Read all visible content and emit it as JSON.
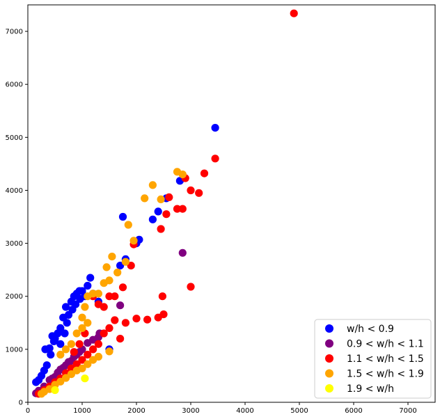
{
  "chart_data": {
    "type": "scatter",
    "title": "",
    "xlabel": "",
    "ylabel": "",
    "xlim": [
      0,
      7500
    ],
    "ylim": [
      0,
      7500
    ],
    "xticks": [
      0,
      1000,
      2000,
      3000,
      4000,
      5000,
      6000,
      7000
    ],
    "yticks": [
      0,
      1000,
      2000,
      3000,
      4000,
      5000,
      6000,
      7000
    ],
    "grid": false,
    "legend_position": "lower-right",
    "series": [
      {
        "name": "w/h < 0.9",
        "color": "#0000ff",
        "points": [
          [
            150,
            380
          ],
          [
            200,
            420
          ],
          [
            300,
            600
          ],
          [
            320,
            1000
          ],
          [
            400,
            1020
          ],
          [
            450,
            1250
          ],
          [
            480,
            1150
          ],
          [
            500,
            1200
          ],
          [
            550,
            1300
          ],
          [
            600,
            1400
          ],
          [
            650,
            1600
          ],
          [
            700,
            1800
          ],
          [
            720,
            1500
          ],
          [
            800,
            1900
          ],
          [
            850,
            2000
          ],
          [
            900,
            2050
          ],
          [
            950,
            2100
          ],
          [
            1000,
            2100
          ],
          [
            1100,
            2200
          ],
          [
            1150,
            2350
          ],
          [
            1200,
            2050
          ],
          [
            1300,
            1900
          ],
          [
            1500,
            1000
          ],
          [
            1700,
            2580
          ],
          [
            1750,
            3500
          ],
          [
            1800,
            2700
          ],
          [
            2000,
            3000
          ],
          [
            2050,
            3070
          ],
          [
            2300,
            3450
          ],
          [
            2400,
            3600
          ],
          [
            2550,
            3850
          ],
          [
            2800,
            4180
          ],
          [
            3450,
            5180
          ],
          [
            250,
            500
          ],
          [
            350,
            700
          ],
          [
            420,
            900
          ],
          [
            600,
            1100
          ],
          [
            680,
            1300
          ],
          [
            750,
            1650
          ],
          [
            820,
            1750
          ],
          [
            880,
            1850
          ],
          [
            960,
            1950
          ],
          [
            1050,
            2000
          ]
        ]
      },
      {
        "name": "0.9 < w/h < 1.1",
        "color": "#800080",
        "points": [
          [
            150,
            170
          ],
          [
            200,
            220
          ],
          [
            300,
            300
          ],
          [
            400,
            420
          ],
          [
            500,
            480
          ],
          [
            600,
            620
          ],
          [
            700,
            700
          ],
          [
            800,
            780
          ],
          [
            900,
            900
          ],
          [
            1000,
            1000
          ],
          [
            1100,
            1120
          ],
          [
            1200,
            1180
          ],
          [
            1300,
            1230
          ],
          [
            1320,
            1300
          ],
          [
            1700,
            1830
          ],
          [
            2850,
            2820
          ],
          [
            450,
            450
          ],
          [
            550,
            560
          ],
          [
            650,
            650
          ],
          [
            750,
            760
          ],
          [
            850,
            860
          ],
          [
            950,
            950
          ]
        ]
      },
      {
        "name": "1.1 < w/h < 1.5",
        "color": "#ff0000",
        "points": [
          [
            200,
            160
          ],
          [
            300,
            230
          ],
          [
            400,
            300
          ],
          [
            500,
            380
          ],
          [
            600,
            450
          ],
          [
            700,
            550
          ],
          [
            800,
            640
          ],
          [
            900,
            720
          ],
          [
            1000,
            800
          ],
          [
            1100,
            900
          ],
          [
            1200,
            1000
          ],
          [
            1300,
            1100
          ],
          [
            1400,
            1300
          ],
          [
            1500,
            1400
          ],
          [
            1600,
            1550
          ],
          [
            1700,
            1200
          ],
          [
            1750,
            2170
          ],
          [
            1800,
            1500
          ],
          [
            1900,
            2580
          ],
          [
            1950,
            2980
          ],
          [
            2000,
            1580
          ],
          [
            2200,
            1560
          ],
          [
            2400,
            1600
          ],
          [
            2450,
            3270
          ],
          [
            2480,
            2000
          ],
          [
            2500,
            1660
          ],
          [
            2550,
            3550
          ],
          [
            2600,
            3870
          ],
          [
            2750,
            3650
          ],
          [
            2850,
            3650
          ],
          [
            2900,
            4230
          ],
          [
            3000,
            4000
          ],
          [
            3000,
            2180
          ],
          [
            3150,
            3950
          ],
          [
            3250,
            4320
          ],
          [
            3450,
            4600
          ],
          [
            4900,
            7340
          ],
          [
            1200,
            2000
          ],
          [
            1300,
            1850
          ],
          [
            1400,
            1800
          ],
          [
            1500,
            2000
          ],
          [
            1600,
            2000
          ],
          [
            1050,
            1300
          ],
          [
            950,
            1100
          ],
          [
            850,
            950
          ]
        ]
      },
      {
        "name": "1.5 < w/h < 1.9",
        "color": "#ffa500",
        "points": [
          [
            250,
            160
          ],
          [
            300,
            200
          ],
          [
            400,
            250
          ],
          [
            500,
            330
          ],
          [
            600,
            390
          ],
          [
            700,
            460
          ],
          [
            800,
            530
          ],
          [
            900,
            600
          ],
          [
            1000,
            640
          ],
          [
            1100,
            720
          ],
          [
            1200,
            800
          ],
          [
            1300,
            860
          ],
          [
            1500,
            960
          ],
          [
            1000,
            1600
          ],
          [
            1050,
            1800
          ],
          [
            1100,
            2000
          ],
          [
            1200,
            2050
          ],
          [
            1300,
            2050
          ],
          [
            1400,
            2250
          ],
          [
            1450,
            2550
          ],
          [
            1500,
            2300
          ],
          [
            1550,
            2750
          ],
          [
            1650,
            2450
          ],
          [
            1800,
            2650
          ],
          [
            1850,
            3350
          ],
          [
            1950,
            3050
          ],
          [
            2150,
            3850
          ],
          [
            2300,
            4100
          ],
          [
            2450,
            3830
          ],
          [
            2750,
            4350
          ],
          [
            2850,
            4300
          ],
          [
            600,
            900
          ],
          [
            700,
            1000
          ],
          [
            800,
            1100
          ],
          [
            900,
            1300
          ],
          [
            1000,
            1400
          ],
          [
            1100,
            1500
          ]
        ]
      },
      {
        "name": "1.9 < w/h",
        "color": "#ffff00",
        "points": [
          [
            500,
            230
          ],
          [
            1050,
            450
          ]
        ]
      }
    ]
  }
}
